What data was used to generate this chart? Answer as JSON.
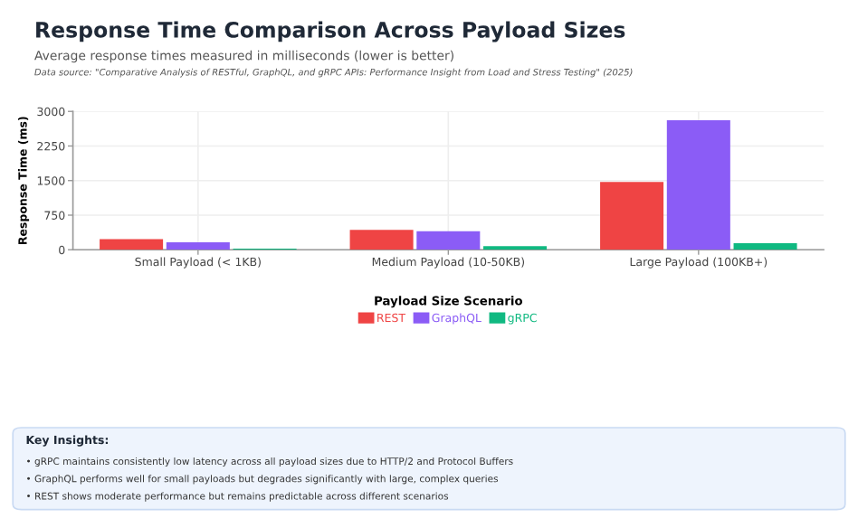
{
  "chart_data": {
    "type": "bar",
    "title": "Response Time Comparison Across Payload Sizes",
    "subtitle": "Average response times measured in milliseconds (lower is better)",
    "ylabel": "Response Time (ms)",
    "legend_title": "Payload Size Scenario",
    "categories": [
      "Small Payload (< 1KB)",
      "Medium Payload (10-50KB)",
      "Large Payload (100KB+)"
    ],
    "series": [
      {
        "name": "REST",
        "color": "#ef4444",
        "values": [
          230,
          430,
          1470
        ]
      },
      {
        "name": "GraphQL",
        "color": "#8b5cf6",
        "values": [
          160,
          400,
          2810
        ]
      },
      {
        "name": "gRPC",
        "color": "#10b981",
        "values": [
          25,
          80,
          140
        ]
      }
    ],
    "ylim": [
      0,
      3000
    ],
    "yticks": [
      0,
      750,
      1500,
      2250,
      3000
    ],
    "grid": true,
    "legend": "bottom",
    "annotations": [
      "Data source: \"Comparative Analysis of RESTful, GraphQL, and gRPC APIs: Performance Insight from Load and Stress Testing\" (2025)",
      "Key Insights:",
      "• gRPC maintains consistently low latency across all payload sizes due to HTTP/2 and Protocol Buffers",
      "• GraphQL performs well for small payloads but degrades significantly with large, complex queries",
      "• REST shows moderate performance but remains predictable across different scenarios"
    ]
  }
}
